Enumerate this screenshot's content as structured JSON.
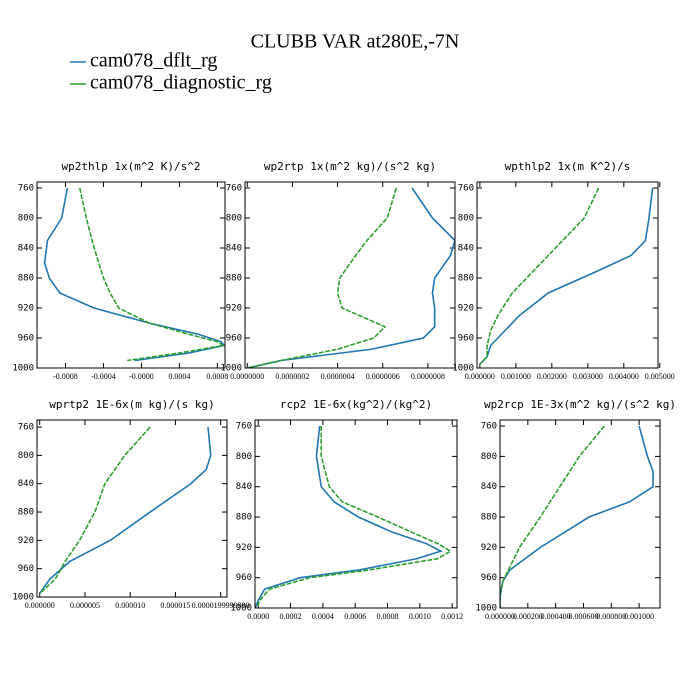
{
  "chart_data": {
    "type": "line",
    "title": "CLUBB VAR at280E,-7N",
    "series": [
      {
        "name": "cam078_dflt_rg",
        "color": "#1f77b4",
        "dashed": false
      },
      {
        "name": "cam078_diagnostic_rg",
        "color": "#2ca02c",
        "dashed": true
      }
    ],
    "panels": [
      {
        "title": "wp2thlp  1x(m^2 K)/s^2",
        "y": [
          760,
          800,
          830,
          860,
          880,
          900,
          920,
          940,
          955,
          965,
          970,
          980,
          990
        ],
        "series": [
          {
            "values": [
              -0.00078,
              -0.00084,
              -0.00099,
              -0.00102,
              -0.00097,
              -0.00086,
              -0.0005,
              8e-05,
              0.0006,
              0.00084,
              0.00087,
              0.0005,
              -7e-05
            ]
          },
          {
            "values": [
              -0.00065,
              -0.00058,
              -0.00052,
              -0.00045,
              -0.0004,
              -0.00033,
              -0.00024,
              8e-05,
              0.0005,
              0.0008,
              0.00086,
              0.0004,
              -0.00015
            ]
          }
        ],
        "xlim": [
          -0.0011,
          0.00088
        ],
        "xticks": [
          -0.0008,
          -0.0004,
          {
            "value": 0,
            "label": "-0.0000"
          },
          0.0004,
          0.0008
        ],
        "ylim": [
          1000,
          752
        ],
        "yticks": [
          760,
          800,
          840,
          880,
          920,
          960,
          1000
        ]
      },
      {
        "title": "wp2rtp  1x(m^2 kg)/(s^2 kg)",
        "y": [
          760,
          800,
          830,
          850,
          880,
          900,
          920,
          945,
          960,
          975,
          990,
          1000
        ],
        "series": [
          {
            "values": [
              7.3e-07,
              8.2e-07,
              9.2e-07,
              9e-07,
              8.3e-07,
              8.2e-07,
              8.3e-07,
              8.3e-07,
              7.8e-07,
              5.5e-07,
              1.5e-07,
              0
            ]
          },
          {
            "values": [
              6.6e-07,
              6.2e-07,
              5.3e-07,
              4.8e-07,
              4.1e-07,
              4e-07,
              4.2e-07,
              6.1e-07,
              5.6e-07,
              4e-07,
              1.5e-07,
              0
            ]
          }
        ],
        "xlim": [
          -1e-08,
          9.2e-07
        ],
        "xticks": [
          {
            "value": 0,
            "label": "0.0000000"
          },
          {
            "value": 2e-07,
            "label": "0.0000002"
          },
          {
            "value": 4e-07,
            "label": "0.0000004"
          },
          {
            "value": 6e-07,
            "label": "0.0000006"
          },
          {
            "value": 8e-07,
            "label": "0.0000008"
          }
        ],
        "ylim": [
          1000,
          752
        ],
        "yticks": [
          760,
          800,
          840,
          880,
          920,
          960,
          1000
        ]
      },
      {
        "title": "wpthlp2  1x(m K^2)/s",
        "y": [
          760,
          800,
          830,
          850,
          870,
          900,
          930,
          950,
          970,
          985,
          995
        ],
        "series": [
          {
            "values": [
              0.0048,
              0.0047,
              0.0046,
              0.0042,
              0.0033,
              0.0019,
              0.0011,
              0.0007,
              0.0003,
              0.0002,
              0
            ]
          },
          {
            "values": [
              0.0033,
              0.0029,
              0.0023,
              0.0019,
              0.0015,
              0.0009,
              0.0005,
              0.0003,
              0.0002,
              0.0002,
              0
            ]
          }
        ],
        "xlim": [
          -8e-05,
          0.00495
        ],
        "xticks": [
          {
            "value": 0,
            "label": "0.000000"
          },
          {
            "value": 0.001,
            "label": "0.001000"
          },
          {
            "value": 0.002,
            "label": "0.002000"
          },
          {
            "value": 0.003,
            "label": "0.003000"
          },
          {
            "value": 0.004,
            "label": "0.004000"
          },
          {
            "value": 0.005,
            "label": "0.005000"
          }
        ],
        "ylim": [
          1000,
          752
        ],
        "yticks": [
          760,
          800,
          840,
          880,
          920,
          960,
          1000
        ]
      },
      {
        "title": "wprtp2  1E-6x(m kg)/(s kg)",
        "y": [
          760,
          800,
          820,
          840,
          880,
          920,
          950,
          975,
          995
        ],
        "series": [
          {
            "values": [
              1.86e-05,
              1.89e-05,
              1.84e-05,
              1.67e-05,
              1.22e-05,
              7.8e-06,
              3.3e-06,
              1.1e-06,
              0
            ]
          },
          {
            "values": [
              1.22e-05,
              9.4e-06,
              8.3e-06,
              7.2e-06,
              6.1e-06,
              4.4e-06,
              2.8e-06,
              1.7e-06,
              0
            ]
          }
        ],
        "xlim": [
          -3e-07,
          2.07e-05
        ],
        "xticks": [
          {
            "value": 0,
            "label": "0.000000"
          },
          {
            "value": 5e-06,
            "label": "0.000005"
          },
          {
            "value": 1e-05,
            "label": "0.000010"
          },
          {
            "value": 1.5e-05,
            "label": "0.000015"
          },
          {
            "value": 2e-05,
            "label": "0.0000199999990"
          }
        ],
        "ylim": [
          1000,
          750
        ],
        "yticks": [
          760,
          800,
          840,
          880,
          920,
          960,
          1000
        ]
      },
      {
        "title": "rcp2  1E-6x(kg^2)/(kg^2)",
        "y": [
          760,
          800,
          840,
          860,
          880,
          900,
          915,
          925,
          935,
          950,
          960,
          975,
          990,
          1000
        ],
        "series": [
          {
            "values": [
              0.00038,
              0.00036,
              0.00039,
              0.00047,
              0.00062,
              0.00083,
              0.00104,
              0.00113,
              0.00098,
              0.00062,
              0.00026,
              4e-05,
              0,
              -2e-05
            ]
          },
          {
            "values": [
              0.00039,
              0.00039,
              0.00044,
              0.00052,
              0.00074,
              0.00095,
              0.00111,
              0.00119,
              0.00111,
              0.00068,
              0.00032,
              7e-05,
              1e-05,
              -1e-05
            ]
          }
        ],
        "xlim": [
          -2e-05,
          0.00123
        ],
        "xticks": [
          {
            "value": 0,
            "label": "0.0000"
          },
          0.0002,
          0.0004,
          0.0006,
          0.0008,
          {
            "value": 0.001,
            "label": "0.0010"
          },
          0.0012
        ],
        "ylim": [
          1000,
          752
        ],
        "yticks": [
          760,
          800,
          840,
          880,
          920,
          960,
          1000
        ]
      },
      {
        "title": "wp2rcp  1E-3x(m^2 kg)/(s^2 kg)",
        "y": [
          760,
          800,
          820,
          840,
          860,
          880,
          920,
          950,
          965,
          985,
          1000
        ],
        "series": [
          {
            "values": [
              0.001,
              0.00106,
              0.0011,
              0.0011,
              0.00093,
              0.00064,
              0.00029,
              7e-05,
              2e-05,
              0,
              0
            ]
          },
          {
            "values": [
              0.00075,
              0.00057,
              0.0005,
              0.00043,
              0.00036,
              0.00029,
              0.00014,
              6e-05,
              2e-05,
              0,
              0
            ]
          }
        ],
        "xlim": [
          0,
          0.00115
        ],
        "xticks": [
          {
            "value": 0,
            "label": "0.000000"
          },
          {
            "value": 0.0002,
            "label": "0.000200"
          },
          {
            "value": 0.0004,
            "label": "0.000400"
          },
          {
            "value": 0.0006,
            "label": "0.000600"
          },
          {
            "value": 0.0008,
            "label": "0.000800"
          },
          {
            "value": 0.001,
            "label": "0.001000"
          }
        ],
        "ylim": [
          1000,
          752
        ],
        "yticks": [
          760,
          800,
          840,
          880,
          920,
          960,
          1000
        ]
      }
    ]
  }
}
